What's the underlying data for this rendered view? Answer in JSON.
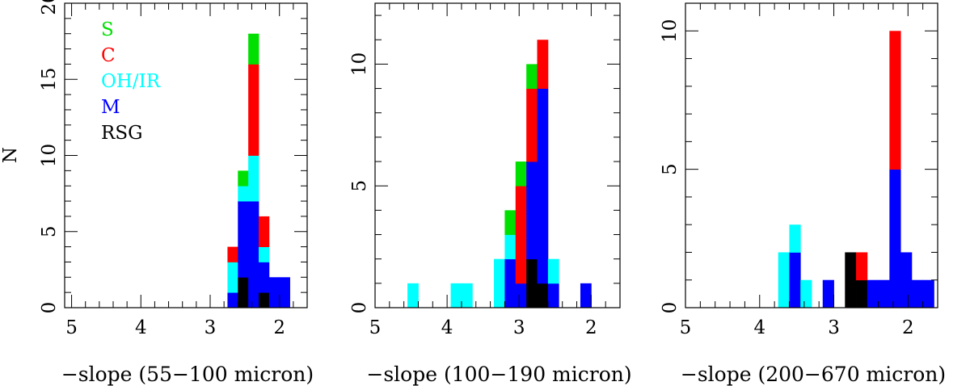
{
  "figure": {
    "ylabel": "N"
  },
  "chart_data": [
    {
      "type": "bar",
      "stacked": true,
      "binned": true,
      "bin_width": 0.15,
      "xlabel": "−slope (55−100 micron)",
      "ylabel": "N",
      "xlim": [
        5.1,
        1.6
      ],
      "ylim": [
        0,
        20
      ],
      "xticks": [
        5,
        4,
        3,
        2
      ],
      "yticks": [
        0,
        5,
        10,
        15,
        20
      ],
      "legend": {
        "position": "top-left",
        "entries": [
          "S",
          "C",
          "OH/IR",
          "M",
          "RSG"
        ]
      },
      "series_colors": {
        "S": "#00e000",
        "C": "#ff0000",
        "OH/IR": "#00ffff",
        "M": "#0000ff",
        "RSG": "#000000"
      },
      "bins": [
        {
          "x": 2.675,
          "counts": {
            "RSG": 0,
            "M": 1,
            "OH/IR": 2,
            "C": 1,
            "S": 0
          }
        },
        {
          "x": 2.525,
          "counts": {
            "RSG": 2,
            "M": 5,
            "OH/IR": 1,
            "C": 0,
            "S": 1
          }
        },
        {
          "x": 2.375,
          "counts": {
            "RSG": 0,
            "M": 7,
            "OH/IR": 3,
            "C": 6,
            "S": 2
          }
        },
        {
          "x": 2.225,
          "counts": {
            "RSG": 1,
            "M": 2,
            "OH/IR": 1,
            "C": 2,
            "S": 0
          }
        },
        {
          "x": 2.075,
          "counts": {
            "RSG": 0,
            "M": 2,
            "OH/IR": 0,
            "C": 0,
            "S": 0
          }
        },
        {
          "x": 1.925,
          "counts": {
            "RSG": 0,
            "M": 2,
            "OH/IR": 0,
            "C": 0,
            "S": 0
          }
        }
      ]
    },
    {
      "type": "bar",
      "stacked": true,
      "binned": true,
      "bin_width": 0.15,
      "xlabel": "−slope (100−190 micron)",
      "ylabel": "",
      "xlim": [
        5.0,
        1.6
      ],
      "ylim": [
        0,
        12.5
      ],
      "xticks": [
        5,
        4,
        3,
        2
      ],
      "yticks": [
        0,
        5,
        10
      ],
      "legend": null,
      "series_colors": {
        "S": "#00e000",
        "C": "#ff0000",
        "OH/IR": "#00ffff",
        "M": "#0000ff",
        "RSG": "#000000"
      },
      "bins": [
        {
          "x": 4.475,
          "counts": {
            "RSG": 0,
            "M": 0,
            "OH/IR": 1,
            "C": 0,
            "S": 0
          }
        },
        {
          "x": 3.875,
          "counts": {
            "RSG": 0,
            "M": 0,
            "OH/IR": 1,
            "C": 0,
            "S": 0
          }
        },
        {
          "x": 3.725,
          "counts": {
            "RSG": 0,
            "M": 0,
            "OH/IR": 1,
            "C": 0,
            "S": 0
          }
        },
        {
          "x": 3.275,
          "counts": {
            "RSG": 0,
            "M": 0,
            "OH/IR": 2,
            "C": 0,
            "S": 0
          }
        },
        {
          "x": 3.125,
          "counts": {
            "RSG": 0,
            "M": 2,
            "OH/IR": 1,
            "C": 0,
            "S": 1
          }
        },
        {
          "x": 2.975,
          "counts": {
            "RSG": 0,
            "M": 1,
            "OH/IR": 0,
            "C": 4,
            "S": 1
          }
        },
        {
          "x": 2.825,
          "counts": {
            "RSG": 2,
            "M": 4,
            "OH/IR": 0,
            "C": 3,
            "S": 1
          }
        },
        {
          "x": 2.675,
          "counts": {
            "RSG": 1,
            "M": 8,
            "OH/IR": 0,
            "C": 2,
            "S": 0
          }
        },
        {
          "x": 2.525,
          "counts": {
            "RSG": 0,
            "M": 1,
            "OH/IR": 1,
            "C": 0,
            "S": 0
          }
        },
        {
          "x": 2.075,
          "counts": {
            "RSG": 0,
            "M": 1,
            "OH/IR": 0,
            "C": 0,
            "S": 0
          }
        }
      ]
    },
    {
      "type": "bar",
      "stacked": true,
      "binned": true,
      "bin_width": 0.15,
      "xlabel": "−slope (200−670 micron)",
      "ylabel": "",
      "xlim": [
        5.0,
        1.6
      ],
      "ylim": [
        0,
        11
      ],
      "xticks": [
        5,
        4,
        3,
        2
      ],
      "yticks": [
        0,
        5,
        10
      ],
      "legend": null,
      "series_colors": {
        "S": "#00e000",
        "C": "#ff0000",
        "OH/IR": "#00ffff",
        "M": "#0000ff",
        "RSG": "#000000"
      },
      "bins": [
        {
          "x": 3.675,
          "counts": {
            "RSG": 0,
            "M": 0,
            "OH/IR": 2,
            "C": 0,
            "S": 0
          }
        },
        {
          "x": 3.525,
          "counts": {
            "RSG": 0,
            "M": 2,
            "OH/IR": 1,
            "C": 0,
            "S": 0
          }
        },
        {
          "x": 3.375,
          "counts": {
            "RSG": 0,
            "M": 0,
            "OH/IR": 1,
            "C": 0,
            "S": 0
          }
        },
        {
          "x": 3.075,
          "counts": {
            "RSG": 0,
            "M": 1,
            "OH/IR": 0,
            "C": 0,
            "S": 0
          }
        },
        {
          "x": 2.775,
          "counts": {
            "RSG": 2,
            "M": 0,
            "OH/IR": 0,
            "C": 0,
            "S": 0
          }
        },
        {
          "x": 2.625,
          "counts": {
            "RSG": 1,
            "M": 0,
            "OH/IR": 0,
            "C": 1,
            "S": 0
          }
        },
        {
          "x": 2.475,
          "counts": {
            "RSG": 0,
            "M": 1,
            "OH/IR": 0,
            "C": 0,
            "S": 0
          }
        },
        {
          "x": 2.325,
          "counts": {
            "RSG": 0,
            "M": 1,
            "OH/IR": 0,
            "C": 0,
            "S": 0
          }
        },
        {
          "x": 2.175,
          "counts": {
            "RSG": 0,
            "M": 5,
            "OH/IR": 0,
            "C": 5,
            "S": 0
          }
        },
        {
          "x": 2.025,
          "counts": {
            "RSG": 0,
            "M": 2,
            "OH/IR": 0,
            "C": 0,
            "S": 0
          }
        },
        {
          "x": 1.875,
          "counts": {
            "RSG": 0,
            "M": 1,
            "OH/IR": 0,
            "C": 0,
            "S": 0
          }
        },
        {
          "x": 1.725,
          "counts": {
            "RSG": 0,
            "M": 1,
            "OH/IR": 0,
            "C": 0,
            "S": 0
          }
        }
      ]
    }
  ]
}
